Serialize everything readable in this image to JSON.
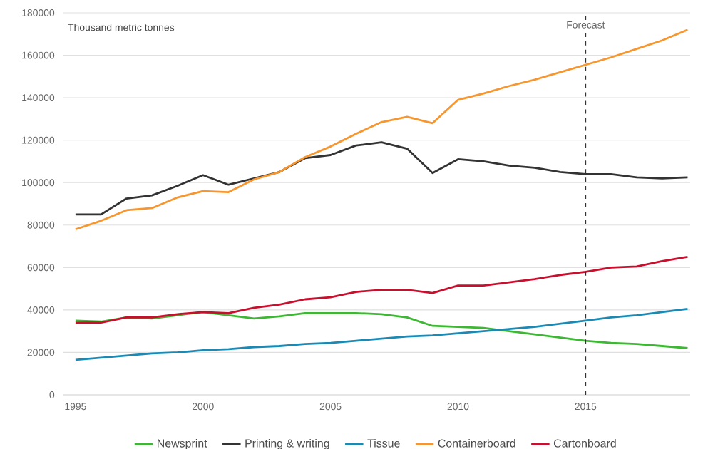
{
  "chart_data": {
    "type": "line",
    "ylabel": "Thousand metric tonnes",
    "x": [
      1995,
      1996,
      1997,
      1998,
      1999,
      2000,
      2001,
      2002,
      2003,
      2004,
      2005,
      2006,
      2007,
      2008,
      2009,
      2010,
      2011,
      2012,
      2013,
      2014,
      2015,
      2016,
      2017,
      2018,
      2019
    ],
    "series": [
      {
        "name": "Newsprint",
        "color": "#3cb832",
        "values": [
          35000,
          34500,
          36500,
          36000,
          37500,
          39000,
          37500,
          36000,
          37000,
          38500,
          38500,
          38500,
          38000,
          36500,
          32500,
          32000,
          31500,
          30000,
          28500,
          27000,
          25500,
          24500,
          24000,
          23000,
          22000
        ]
      },
      {
        "name": "Printing & writing",
        "color": "#333333",
        "values": [
          85000,
          85000,
          92500,
          94000,
          98500,
          103500,
          99000,
          102000,
          105000,
          111500,
          113000,
          117500,
          119000,
          116000,
          104500,
          111000,
          110000,
          108000,
          107000,
          105000,
          104000,
          104000,
          102500,
          102000,
          102500
        ]
      },
      {
        "name": "Tissue",
        "color": "#1a8ab5",
        "values": [
          16500,
          17500,
          18500,
          19500,
          20000,
          21000,
          21500,
          22500,
          23000,
          24000,
          24500,
          25500,
          26500,
          27500,
          28000,
          29000,
          30000,
          31000,
          32000,
          33500,
          35000,
          36500,
          37500,
          39000,
          40500
        ]
      },
      {
        "name": "Containerboard",
        "color": "#f7962f",
        "values": [
          78000,
          82000,
          87000,
          88000,
          93000,
          96000,
          95500,
          101500,
          105000,
          112000,
          117000,
          123000,
          128500,
          131000,
          128000,
          139000,
          142000,
          145500,
          148500,
          152000,
          155500,
          159000,
          163000,
          167000,
          172000
        ]
      },
      {
        "name": "Cartonboard",
        "color": "#c8102e",
        "values": [
          34000,
          34000,
          36500,
          36500,
          38000,
          39000,
          38500,
          41000,
          42500,
          45000,
          46000,
          48500,
          49500,
          49500,
          48000,
          51500,
          51500,
          53000,
          54500,
          56500,
          58000,
          60000,
          60500,
          63000,
          65000
        ]
      }
    ],
    "xlim": [
      1994.5,
      2019.1
    ],
    "xticks": [
      1995,
      2000,
      2005,
      2010,
      2015
    ],
    "ylim": [
      0,
      180000
    ],
    "yticks": [
      0,
      20000,
      40000,
      60000,
      80000,
      100000,
      120000,
      140000,
      160000,
      180000
    ],
    "grid": "y",
    "legend": "bottom",
    "marker": "none",
    "line_style": "solid",
    "ref_lines": [
      {
        "axis": "x",
        "value": 2015,
        "label": "Forecast",
        "color": "#333333",
        "line_style": "dashed"
      }
    ]
  }
}
